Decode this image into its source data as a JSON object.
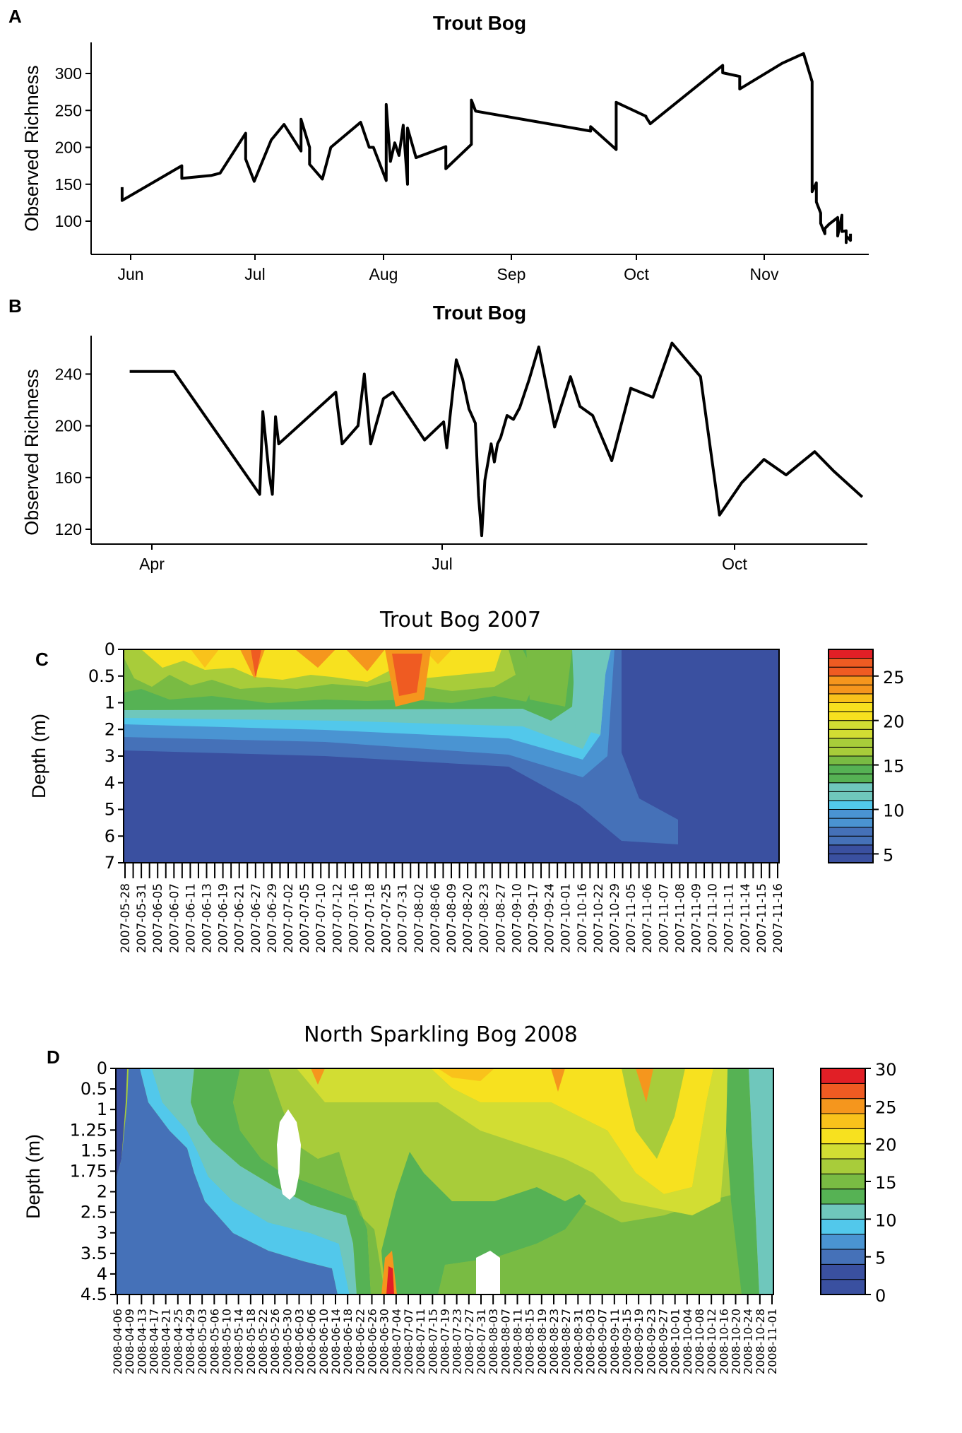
{
  "chart_data": [
    {
      "panel": "A",
      "type": "line",
      "title": "Trout Bog",
      "ylabel": "Observed Richness",
      "xlabel": "",
      "x_ticks": [
        "Jun",
        "Jul",
        "Aug",
        "Sep",
        "Oct",
        "Nov"
      ],
      "y_ticks": [
        100,
        150,
        200,
        250,
        300
      ],
      "ylim": [
        75,
        335
      ],
      "series": [
        {
          "x": [
            "05-30",
            "05-30",
            "06-13",
            "06-13",
            "06-20",
            "06-22",
            "06-28",
            "06-28",
            "06-30",
            "07-04",
            "07-07",
            "07-11",
            "07-11",
            "07-13",
            "07-13",
            "07-16",
            "07-18",
            "07-25",
            "07-27",
            "07-28",
            "07-28",
            "07-31",
            "07-31",
            "08-01",
            "08-02",
            "08-03",
            "08-04",
            "08-05",
            "08-05",
            "08-07",
            "08-07",
            "08-14",
            "08-14",
            "08-20",
            "08-20",
            "08-21",
            "09-17",
            "09-17",
            "09-23",
            "09-23",
            "09-30",
            "09-30",
            "10-01",
            "10-18",
            "10-18",
            "10-22",
            "10-22",
            "11-01",
            "11-06",
            "11-08",
            "11-08",
            "11-09",
            "11-09",
            "11-10",
            "11-10",
            "11-11",
            "11-11",
            "11-12",
            "11-14",
            "11-14",
            "11-15",
            "11-15",
            "11-16",
            "11-16",
            "11-16",
            "11-17",
            "11-17"
          ],
          "y": [
            146,
            128,
            175,
            158,
            162,
            165,
            219,
            184,
            154,
            210,
            231,
            195,
            238,
            200,
            177,
            157,
            200,
            234,
            200,
            200,
            200,
            155,
            258,
            181,
            206,
            189,
            230,
            150,
            226,
            186,
            186,
            201,
            171,
            204,
            264,
            249,
            222,
            228,
            197,
            261,
            242,
            241,
            232,
            311,
            301,
            296,
            279,
            314,
            327,
            289,
            140,
            152,
            126,
            111,
            97,
            83,
            90,
            96,
            105,
            80,
            108,
            86,
            87,
            71,
            80,
            74,
            83
          ]
        }
      ]
    },
    {
      "panel": "B",
      "type": "line",
      "title": "Trout Bog",
      "ylabel": "Observed Richness",
      "xlabel": "",
      "x_ticks": [
        "Apr",
        "Jul",
        "Oct"
      ],
      "y_ticks": [
        120,
        160,
        200,
        240
      ],
      "ylim": [
        110,
        270
      ],
      "series": [
        {
          "x": [
            "03-25",
            "04-08",
            "05-05",
            "05-06",
            "05-08",
            "05-09",
            "05-10",
            "05-11",
            "05-29",
            "05-31",
            "06-05",
            "06-07",
            "06-09",
            "06-13",
            "06-16",
            "06-26",
            "07-02",
            "07-03",
            "07-04",
            "07-06",
            "07-08",
            "07-10",
            "07-12",
            "07-13",
            "07-14",
            "07-15",
            "07-17",
            "07-18",
            "07-19",
            "07-20",
            "07-22",
            "07-24",
            "07-26",
            "07-29",
            "08-01",
            "08-06",
            "08-11",
            "08-14",
            "08-18",
            "08-24",
            "08-30",
            "09-06",
            "09-12",
            "09-21",
            "09-27",
            "10-04",
            "10-11",
            "10-18",
            "10-27",
            "11-02",
            "11-11"
          ],
          "y": [
            242,
            242,
            147,
            211,
            162,
            147,
            207,
            186,
            226,
            186,
            200,
            240,
            186,
            221,
            226,
            189,
            203,
            183,
            207,
            251,
            236,
            213,
            202,
            146,
            115,
            158,
            186,
            172,
            186,
            191,
            208,
            205,
            214,
            236,
            261,
            199,
            238,
            215,
            208,
            173,
            229,
            222,
            264,
            238,
            131,
            156,
            174,
            162,
            180,
            165,
            145
          ]
        }
      ]
    },
    {
      "panel": "C",
      "type": "heatmap",
      "title": "Trout Bog 2007",
      "ylabel": "Depth (m)",
      "xlabel": "",
      "y_ticks": [
        "0",
        "0.5",
        "1",
        "2",
        "3",
        "4",
        "5",
        "6",
        "7"
      ],
      "colorbar_ticks": [
        5,
        10,
        15,
        20,
        25
      ],
      "colorbar_range": [
        4,
        28
      ],
      "x_dates": [
        "2007-05-28",
        "2007-05-31",
        "2007-06-05",
        "2007-06-07",
        "2007-06-11",
        "2007-06-13",
        "2007-06-19",
        "2007-06-21",
        "2007-06-27",
        "2007-06-29",
        "2007-07-02",
        "2007-07-05",
        "2007-07-10",
        "2007-07-12",
        "2007-07-16",
        "2007-07-18",
        "2007-07-25",
        "2007-07-31",
        "2007-08-02",
        "2007-08-06",
        "2007-08-09",
        "2007-08-20",
        "2007-08-23",
        "2007-08-27",
        "2007-09-10",
        "2007-09-17",
        "2007-09-24",
        "2007-10-01",
        "2007-10-16",
        "2007-10-22",
        "2007-10-29",
        "2007-11-05",
        "2007-11-06",
        "2007-11-07",
        "2007-11-08",
        "2007-11-09",
        "2007-11-10",
        "2007-11-11",
        "2007-11-14",
        "2007-11-15",
        "2007-11-16"
      ]
    },
    {
      "panel": "D",
      "type": "heatmap",
      "title": "North Sparkling Bog 2008",
      "ylabel": "Depth (m)",
      "xlabel": "",
      "y_ticks": [
        "0",
        "0.5",
        "1",
        "1.25",
        "1.5",
        "1.75",
        "2",
        "2.5",
        "3",
        "3.5",
        "4",
        "4.5"
      ],
      "colorbar_ticks": [
        0,
        5,
        10,
        15,
        20,
        25,
        30
      ],
      "colorbar_range": [
        0,
        30
      ],
      "x_dates_first": "2008-04-06",
      "x_dates_last": "2008-11-01",
      "x_date_count": 55
    }
  ],
  "colors": {
    "line": "#000000",
    "palette": [
      "#3a50a0",
      "#4571b8",
      "#4a94d2",
      "#52c8eb",
      "#6fc7bc",
      "#56b254",
      "#79bb43",
      "#a8cc3a",
      "#d2dd33",
      "#f7e11f",
      "#f9c21b",
      "#f5961d",
      "#ef5b22",
      "#e11f26"
    ]
  }
}
